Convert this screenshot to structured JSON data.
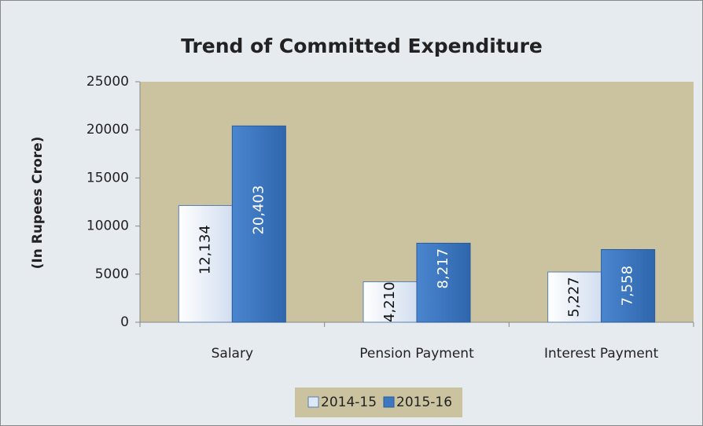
{
  "chart_data": {
    "type": "bar",
    "title": "Trend of Committed Expenditure",
    "y_label": "(In Rupees Crore)",
    "categories": [
      "Salary",
      "Pension Payment",
      "Interest Payment"
    ],
    "series": [
      {
        "name": "2014-15",
        "color": "#dfe8f6",
        "values": [
          12134,
          4210,
          5227
        ],
        "value_labels": [
          "12,134",
          "4,210",
          "5,227"
        ]
      },
      {
        "name": "2015-16",
        "color": "#3c77c0",
        "values": [
          20403,
          8217,
          7558
        ],
        "value_labels": [
          "20,403",
          "8,217",
          "7,558"
        ]
      }
    ],
    "ylim": [
      0,
      25000
    ],
    "yticks": [
      0,
      5000,
      10000,
      15000,
      20000,
      25000
    ],
    "legend": "bottom"
  }
}
